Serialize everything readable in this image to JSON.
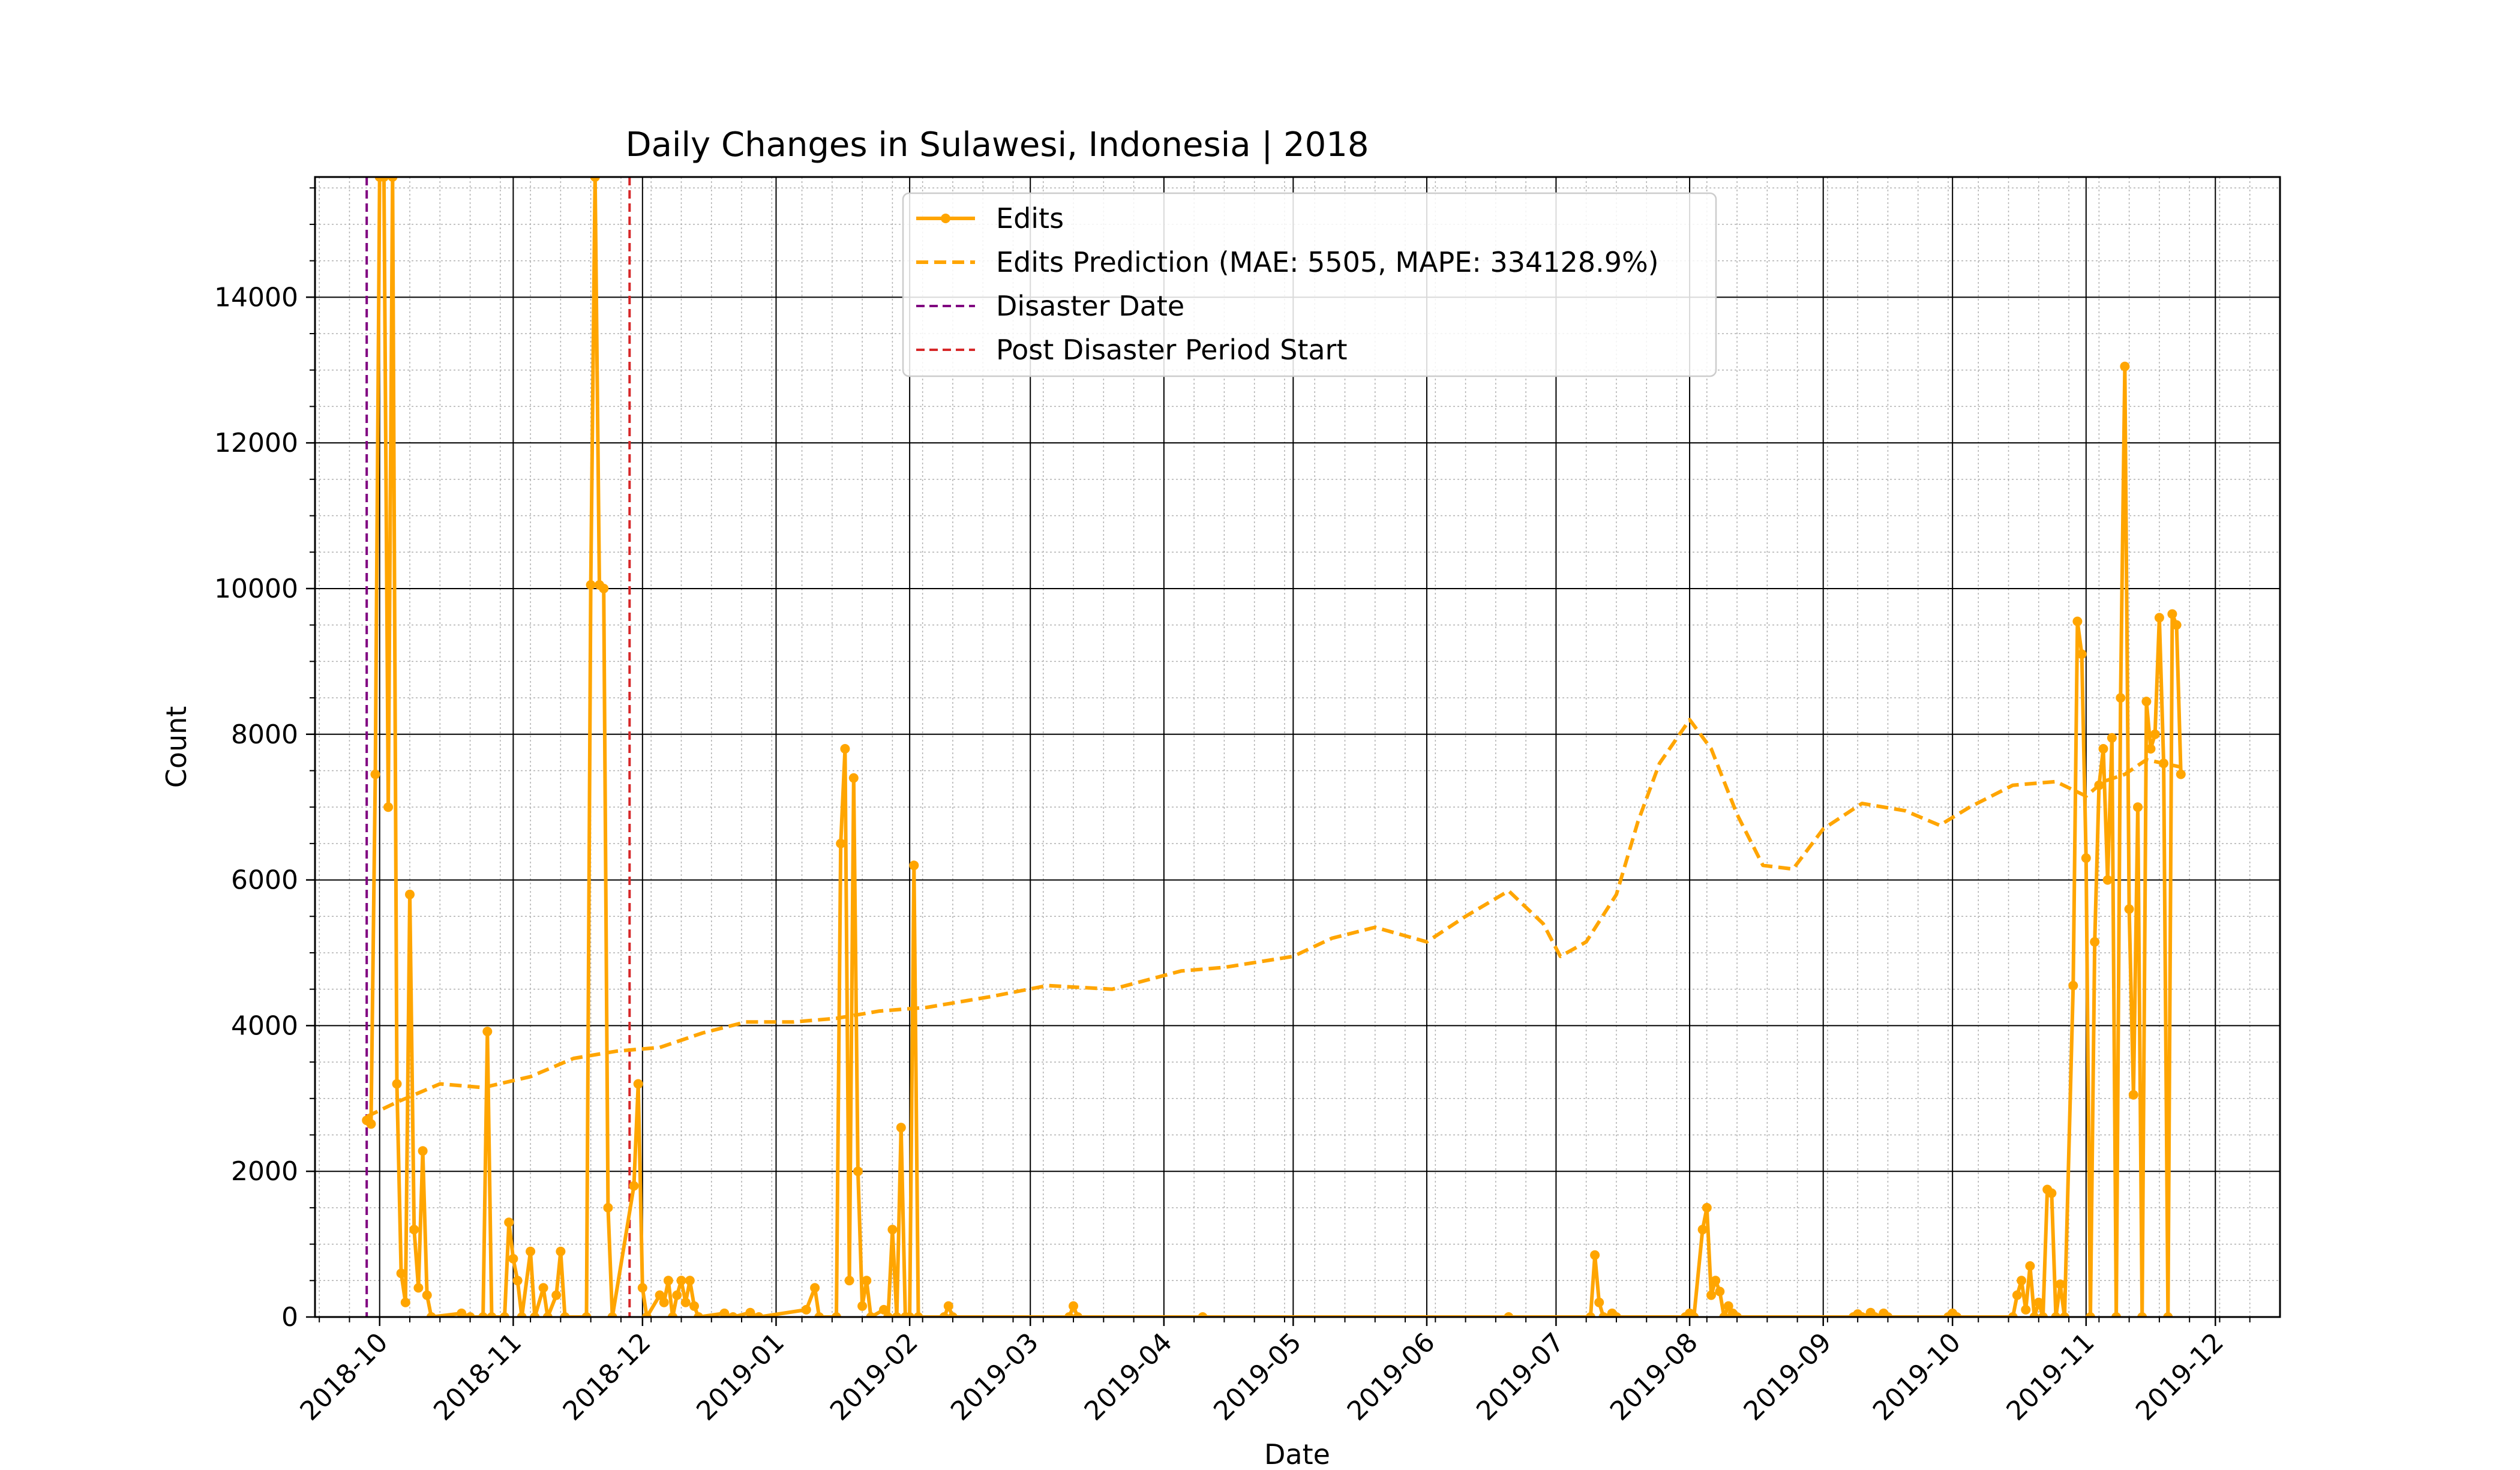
{
  "chart_data": {
    "type": "line",
    "title": "Daily Changes in Sulawesi, Indonesia | 2018",
    "xlabel": "Date",
    "ylabel": "Count",
    "x_type": "date",
    "xlim": [
      "2018-09-16",
      "2019-12-16"
    ],
    "ylim": [
      0,
      15650
    ],
    "x_ticks": [
      "2018-10",
      "2018-11",
      "2018-12",
      "2019-01",
      "2019-02",
      "2019-03",
      "2019-04",
      "2019-05",
      "2019-06",
      "2019-07",
      "2019-08",
      "2019-09",
      "2019-10",
      "2019-11",
      "2019-12"
    ],
    "y_ticks": [
      0,
      2000,
      4000,
      6000,
      8000,
      10000,
      12000,
      14000
    ],
    "grid": true,
    "legend_position": "top-center",
    "series": [
      {
        "name": "Edits",
        "style": "solid line with circle markers",
        "color": "#ffa500",
        "points": [
          [
            "2018-09-28",
            2700
          ],
          [
            "2018-09-29",
            2650
          ],
          [
            "2018-09-30",
            7450
          ],
          [
            "2018-10-01",
            15650
          ],
          [
            "2018-10-02",
            15650
          ],
          [
            "2018-10-03",
            7000
          ],
          [
            "2018-10-04",
            15650
          ],
          [
            "2018-10-05",
            3200
          ],
          [
            "2018-10-06",
            600
          ],
          [
            "2018-10-07",
            200
          ],
          [
            "2018-10-08",
            5800
          ],
          [
            "2018-10-09",
            1200
          ],
          [
            "2018-10-10",
            400
          ],
          [
            "2018-10-11",
            2280
          ],
          [
            "2018-10-12",
            300
          ],
          [
            "2018-10-13",
            0
          ],
          [
            "2018-10-20",
            50
          ],
          [
            "2018-10-22",
            0
          ],
          [
            "2018-10-25",
            0
          ],
          [
            "2018-10-26",
            3920
          ],
          [
            "2018-10-27",
            0
          ],
          [
            "2018-10-30",
            0
          ],
          [
            "2018-10-31",
            1300
          ],
          [
            "2018-11-01",
            800
          ],
          [
            "2018-11-02",
            500
          ],
          [
            "2018-11-03",
            0
          ],
          [
            "2018-11-05",
            900
          ],
          [
            "2018-11-06",
            0
          ],
          [
            "2018-11-08",
            400
          ],
          [
            "2018-11-09",
            0
          ],
          [
            "2018-11-11",
            300
          ],
          [
            "2018-11-12",
            900
          ],
          [
            "2018-11-13",
            0
          ],
          [
            "2018-11-18",
            0
          ],
          [
            "2018-11-19",
            10050
          ],
          [
            "2018-11-20",
            15650
          ],
          [
            "2018-11-21",
            10050
          ],
          [
            "2018-11-22",
            10000
          ],
          [
            "2018-11-23",
            1500
          ],
          [
            "2018-11-24",
            0
          ],
          [
            "2018-11-29",
            1800
          ],
          [
            "2018-11-30",
            3200
          ],
          [
            "2018-12-01",
            400
          ],
          [
            "2018-12-02",
            0
          ],
          [
            "2018-12-05",
            300
          ],
          [
            "2018-12-06",
            200
          ],
          [
            "2018-12-07",
            500
          ],
          [
            "2018-12-08",
            0
          ],
          [
            "2018-12-09",
            300
          ],
          [
            "2018-12-10",
            500
          ],
          [
            "2018-12-11",
            200
          ],
          [
            "2018-12-12",
            500
          ],
          [
            "2018-12-13",
            150
          ],
          [
            "2018-12-14",
            0
          ],
          [
            "2018-12-20",
            50
          ],
          [
            "2018-12-22",
            0
          ],
          [
            "2018-12-26",
            60
          ],
          [
            "2018-12-28",
            0
          ],
          [
            "2019-01-08",
            100
          ],
          [
            "2019-01-10",
            400
          ],
          [
            "2019-01-11",
            0
          ],
          [
            "2019-01-15",
            0
          ],
          [
            "2019-01-16",
            6500
          ],
          [
            "2019-01-17",
            7800
          ],
          [
            "2019-01-18",
            500
          ],
          [
            "2019-01-19",
            7400
          ],
          [
            "2019-01-20",
            2000
          ],
          [
            "2019-01-21",
            150
          ],
          [
            "2019-01-22",
            500
          ],
          [
            "2019-01-23",
            0
          ],
          [
            "2019-01-26",
            100
          ],
          [
            "2019-01-27",
            0
          ],
          [
            "2019-01-28",
            1200
          ],
          [
            "2019-01-29",
            0
          ],
          [
            "2019-01-30",
            2600
          ],
          [
            "2019-01-31",
            0
          ],
          [
            "2019-02-01",
            0
          ],
          [
            "2019-02-02",
            6200
          ],
          [
            "2019-02-03",
            0
          ],
          [
            "2019-02-09",
            0
          ],
          [
            "2019-02-10",
            150
          ],
          [
            "2019-02-11",
            0
          ],
          [
            "2019-03-10",
            0
          ],
          [
            "2019-03-11",
            150
          ],
          [
            "2019-03-12",
            0
          ],
          [
            "2019-04-10",
            0
          ],
          [
            "2019-06-20",
            0
          ],
          [
            "2019-07-09",
            0
          ],
          [
            "2019-07-10",
            850
          ],
          [
            "2019-07-11",
            200
          ],
          [
            "2019-07-12",
            0
          ],
          [
            "2019-07-14",
            50
          ],
          [
            "2019-07-15",
            0
          ],
          [
            "2019-07-31",
            0
          ],
          [
            "2019-08-01",
            50
          ],
          [
            "2019-08-02",
            0
          ],
          [
            "2019-08-04",
            1200
          ],
          [
            "2019-08-05",
            1500
          ],
          [
            "2019-08-06",
            300
          ],
          [
            "2019-08-07",
            500
          ],
          [
            "2019-08-08",
            350
          ],
          [
            "2019-08-09",
            0
          ],
          [
            "2019-08-10",
            150
          ],
          [
            "2019-08-11",
            50
          ],
          [
            "2019-08-12",
            0
          ],
          [
            "2019-09-08",
            0
          ],
          [
            "2019-09-09",
            40
          ],
          [
            "2019-09-10",
            0
          ],
          [
            "2019-09-12",
            60
          ],
          [
            "2019-09-13",
            0
          ],
          [
            "2019-09-15",
            50
          ],
          [
            "2019-09-16",
            0
          ],
          [
            "2019-09-30",
            0
          ],
          [
            "2019-10-01",
            50
          ],
          [
            "2019-10-02",
            0
          ],
          [
            "2019-10-15",
            0
          ],
          [
            "2019-10-16",
            300
          ],
          [
            "2019-10-17",
            500
          ],
          [
            "2019-10-18",
            100
          ],
          [
            "2019-10-19",
            700
          ],
          [
            "2019-10-20",
            0
          ],
          [
            "2019-10-21",
            200
          ],
          [
            "2019-10-22",
            0
          ],
          [
            "2019-10-23",
            1750
          ],
          [
            "2019-10-24",
            1700
          ],
          [
            "2019-10-25",
            0
          ],
          [
            "2019-10-26",
            450
          ],
          [
            "2019-10-27",
            0
          ],
          [
            "2019-10-29",
            4550
          ],
          [
            "2019-10-30",
            9550
          ],
          [
            "2019-10-31",
            9100
          ],
          [
            "2019-11-01",
            6300
          ],
          [
            "2019-11-02",
            0
          ],
          [
            "2019-11-03",
            5150
          ],
          [
            "2019-11-04",
            7300
          ],
          [
            "2019-11-05",
            7800
          ],
          [
            "2019-11-06",
            6000
          ],
          [
            "2019-11-07",
            7950
          ],
          [
            "2019-11-08",
            0
          ],
          [
            "2019-11-09",
            8500
          ],
          [
            "2019-11-10",
            13050
          ],
          [
            "2019-11-11",
            5600
          ],
          [
            "2019-11-12",
            3050
          ],
          [
            "2019-11-13",
            7000
          ],
          [
            "2019-11-14",
            0
          ],
          [
            "2019-11-15",
            8450
          ],
          [
            "2019-11-16",
            7800
          ],
          [
            "2019-11-17",
            8000
          ],
          [
            "2019-11-18",
            9600
          ],
          [
            "2019-11-19",
            7600
          ],
          [
            "2019-11-20",
            0
          ],
          [
            "2019-11-21",
            9650
          ],
          [
            "2019-11-22",
            9500
          ],
          [
            "2019-11-23",
            7450
          ]
        ]
      },
      {
        "name": "Edits Prediction (MAE: 5505, MAPE: 334128.9%)",
        "style": "dashed line",
        "color": "#ffa500",
        "points": [
          [
            "2018-09-28",
            2750
          ],
          [
            "2018-10-05",
            2950
          ],
          [
            "2018-10-15",
            3200
          ],
          [
            "2018-10-25",
            3150
          ],
          [
            "2018-11-05",
            3300
          ],
          [
            "2018-11-15",
            3550
          ],
          [
            "2018-11-25",
            3650
          ],
          [
            "2018-12-05",
            3700
          ],
          [
            "2018-12-15",
            3900
          ],
          [
            "2018-12-25",
            4050
          ],
          [
            "2019-01-05",
            4050
          ],
          [
            "2019-01-15",
            4100
          ],
          [
            "2019-01-25",
            4200
          ],
          [
            "2019-02-05",
            4250
          ],
          [
            "2019-02-20",
            4400
          ],
          [
            "2019-03-05",
            4550
          ],
          [
            "2019-03-20",
            4500
          ],
          [
            "2019-04-05",
            4750
          ],
          [
            "2019-04-15",
            4800
          ],
          [
            "2019-05-01",
            4950
          ],
          [
            "2019-05-10",
            5200
          ],
          [
            "2019-05-20",
            5350
          ],
          [
            "2019-06-01",
            5150
          ],
          [
            "2019-06-10",
            5500
          ],
          [
            "2019-06-20",
            5850
          ],
          [
            "2019-06-28",
            5400
          ],
          [
            "2019-07-02",
            4950
          ],
          [
            "2019-07-08",
            5150
          ],
          [
            "2019-07-15",
            5800
          ],
          [
            "2019-07-20",
            6800
          ],
          [
            "2019-07-25",
            7600
          ],
          [
            "2019-08-01",
            8200
          ],
          [
            "2019-08-06",
            7800
          ],
          [
            "2019-08-12",
            6900
          ],
          [
            "2019-08-18",
            6200
          ],
          [
            "2019-08-25",
            6150
          ],
          [
            "2019-09-01",
            6700
          ],
          [
            "2019-09-10",
            7050
          ],
          [
            "2019-09-20",
            6950
          ],
          [
            "2019-09-28",
            6750
          ],
          [
            "2019-10-05",
            7000
          ],
          [
            "2019-10-15",
            7300
          ],
          [
            "2019-10-25",
            7350
          ],
          [
            "2019-11-01",
            7150
          ],
          [
            "2019-11-05",
            7350
          ],
          [
            "2019-11-10",
            7450
          ],
          [
            "2019-11-15",
            7650
          ],
          [
            "2019-11-23",
            7550
          ]
        ]
      }
    ],
    "vlines": [
      {
        "name": "Disaster Date",
        "date": "2018-09-28",
        "color": "#800080",
        "style": "dashed"
      },
      {
        "name": "Post Disaster Period Start",
        "date": "2018-11-28",
        "color": "#d62728",
        "style": "dashed"
      }
    ]
  }
}
